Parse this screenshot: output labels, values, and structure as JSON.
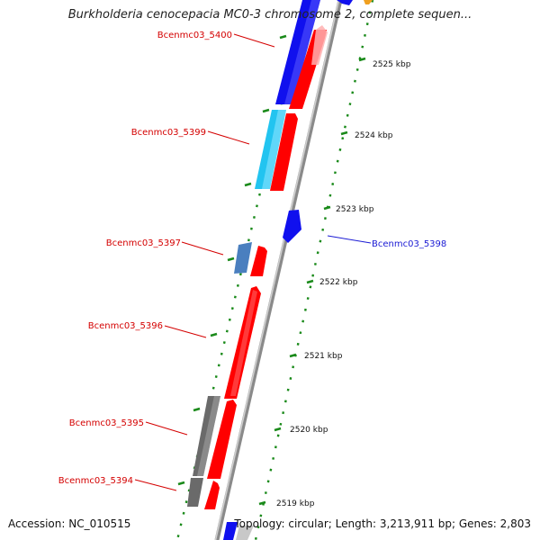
{
  "title": "Burkholderia cenocepacia MC0-3 chromosome 2, complete sequen...",
  "accession": "Accession: NC_010515",
  "topology": "Topology: circular; Length: 3,213,911 bp; Genes: 2,803",
  "colors": {
    "backbone": "#8a8a8a",
    "tick": "#1a8a1a",
    "gene_label": "#d40000",
    "gene_label_alt": "#1a1ad4",
    "forward_gene": "#ff0000",
    "reverse_blue": "#1010ee",
    "reverse_cyan": "#22c4f0",
    "reverse_steel": "#4a7fbf",
    "reverse_gray": "#6a6a6a"
  },
  "ticks": [
    "2525 kbp",
    "2524 kbp",
    "2523 kbp",
    "2522 kbp",
    "2521 kbp",
    "2520 kbp",
    "2519 kbp"
  ],
  "gene_labels": [
    {
      "name": "Bcenmc03_5400",
      "strand": "reverse"
    },
    {
      "name": "Bcenmc03_5399",
      "strand": "reverse"
    },
    {
      "name": "Bcenmc03_5398",
      "strand": "forward_inner"
    },
    {
      "name": "Bcenmc03_5397",
      "strand": "reverse"
    },
    {
      "name": "Bcenmc03_5396",
      "strand": "forward"
    },
    {
      "name": "Bcenmc03_5395",
      "strand": "reverse"
    },
    {
      "name": "Bcenmc03_5394",
      "strand": "reverse"
    }
  ]
}
